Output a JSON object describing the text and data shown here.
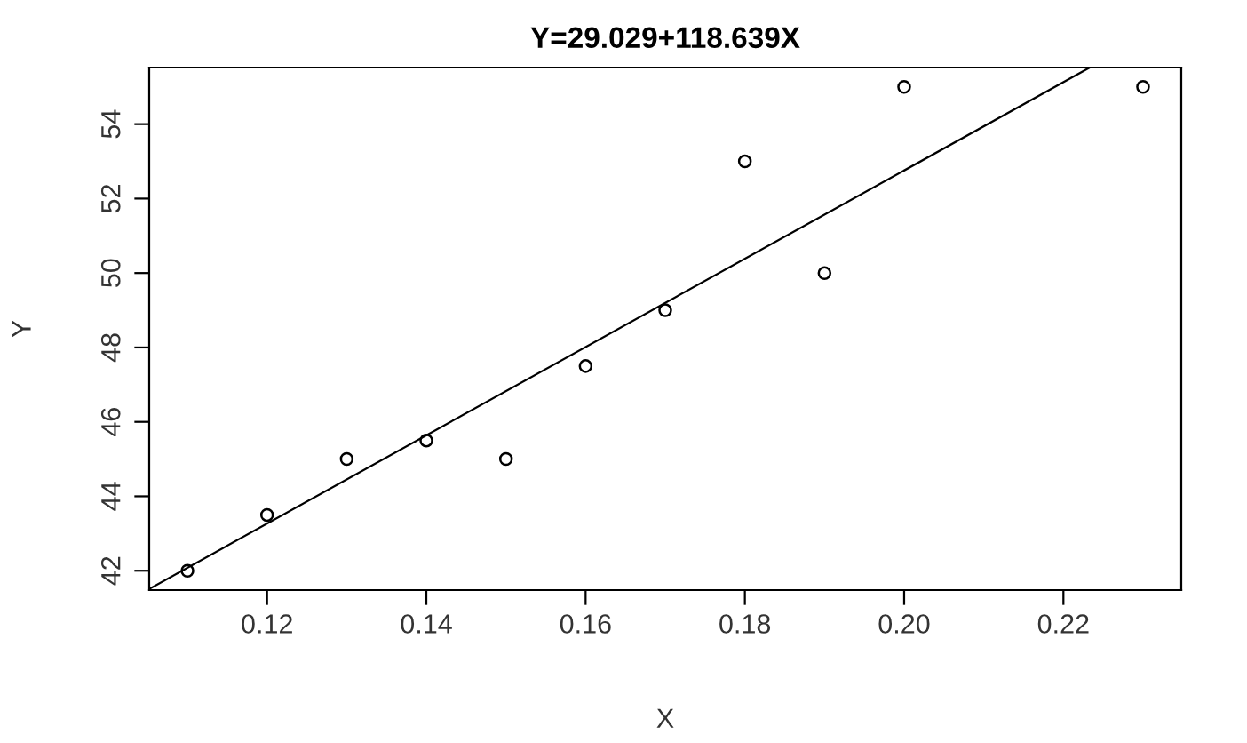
{
  "chart_data": {
    "type": "scatter",
    "title": "Y=29.029+118.639X",
    "xlabel": "X",
    "ylabel": "Y",
    "series": [
      {
        "color": "#000000",
        "marker": "circle",
        "x": [
          0.11,
          0.12,
          0.13,
          0.14,
          0.15,
          0.16,
          0.17,
          0.18,
          0.19,
          0.2,
          0.23
        ],
        "values": [
          42,
          43.5,
          45,
          45.5,
          45,
          47.5,
          49,
          53,
          50,
          55,
          55
        ]
      },
      {
        "type": "line",
        "color": "#000000",
        "marker": "none",
        "x": [
          0.1052,
          0.2233
        ],
        "values": [
          41.51,
          55.52
        ]
      }
    ],
    "xlim": [
      0.1052,
      0.2348
    ],
    "ylim": [
      41.48,
      55.52
    ],
    "xticks": [
      {
        "value": 0.12,
        "label": "0.12"
      },
      {
        "value": 0.14,
        "label": "0.14"
      },
      {
        "value": 0.16,
        "label": "0.16"
      },
      {
        "value": 0.18,
        "label": "0.18"
      },
      {
        "value": 0.2,
        "label": "0.20"
      },
      {
        "value": 0.22,
        "label": "0.22"
      }
    ],
    "yticks": [
      42,
      44,
      46,
      48,
      50,
      52,
      54
    ],
    "grid": false,
    "legend": false
  }
}
